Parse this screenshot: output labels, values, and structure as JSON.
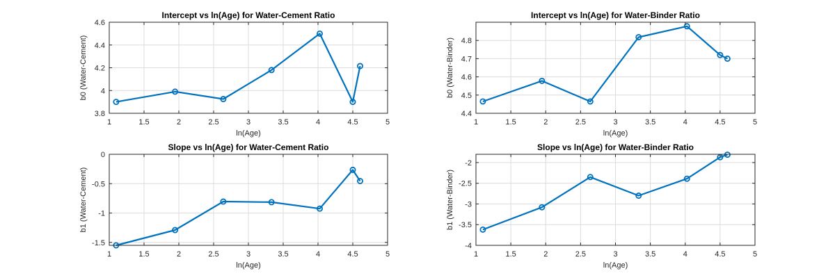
{
  "chart_data": [
    {
      "type": "line",
      "title": "Intercept vs ln(Age) for Water-Cement Ratio",
      "xlabel": "ln(Age)",
      "ylabel": "b0 (Water-Cement)",
      "xlim": [
        1,
        5
      ],
      "ylim": [
        3.8,
        4.6
      ],
      "xticks": [
        1,
        1.5,
        2,
        2.5,
        3,
        3.5,
        4,
        4.5,
        5
      ],
      "yticks": [
        3.8,
        4,
        4.2,
        4.4,
        4.6
      ],
      "grid": true,
      "color": "#0072BD",
      "series": [
        {
          "x": [
            1.099,
            1.946,
            2.639,
            3.332,
            4.025,
            4.5,
            4.605
          ],
          "y": [
            3.9,
            3.99,
            3.925,
            4.18,
            4.5,
            3.9,
            4.215
          ]
        }
      ]
    },
    {
      "type": "line",
      "title": "Intercept vs ln(Age) for Water-Binder Ratio",
      "xlabel": "ln(Age)",
      "ylabel": "b0 (Water-Binder)",
      "xlim": [
        1,
        5
      ],
      "ylim": [
        4.4,
        4.9
      ],
      "xticks": [
        1,
        1.5,
        2,
        2.5,
        3,
        3.5,
        4,
        4.5,
        5
      ],
      "yticks": [
        4.4,
        4.5,
        4.6,
        4.7,
        4.8
      ],
      "grid": true,
      "color": "#0072BD",
      "series": [
        {
          "x": [
            1.099,
            1.946,
            2.639,
            3.332,
            4.025,
            4.5,
            4.605
          ],
          "y": [
            4.465,
            4.578,
            4.465,
            4.818,
            4.878,
            4.72,
            4.7
          ]
        }
      ]
    },
    {
      "type": "line",
      "title": "Slope vs ln(Age) for Water-Cement Ratio",
      "xlabel": "ln(Age)",
      "ylabel": "b1 (Water-Cement)",
      "xlim": [
        1,
        5
      ],
      "ylim": [
        -1.55,
        0
      ],
      "xticks": [
        1,
        1.5,
        2,
        2.5,
        3,
        3.5,
        4,
        4.5,
        5
      ],
      "yticks": [
        -1.5,
        -1,
        -0.5,
        0
      ],
      "grid": true,
      "color": "#0072BD",
      "series": [
        {
          "x": [
            1.099,
            1.946,
            2.639,
            3.332,
            4.025,
            4.5,
            4.605
          ],
          "y": [
            -1.55,
            -1.29,
            -0.805,
            -0.815,
            -0.925,
            -0.265,
            -0.455
          ]
        }
      ]
    },
    {
      "type": "line",
      "title": "Slope vs ln(Age) for Water-Binder Ratio",
      "xlabel": "ln(Age)",
      "ylabel": "b1 (Water-Binder)",
      "xlim": [
        1,
        5
      ],
      "ylim": [
        -4,
        -1.8
      ],
      "xticks": [
        1,
        1.5,
        2,
        2.5,
        3,
        3.5,
        4,
        4.5,
        5
      ],
      "yticks": [
        -4,
        -3.5,
        -3,
        -2.5,
        -2
      ],
      "grid": true,
      "color": "#0072BD",
      "series": [
        {
          "x": [
            1.099,
            1.946,
            2.639,
            3.332,
            4.025,
            4.5,
            4.605
          ],
          "y": [
            -3.62,
            -3.08,
            -2.35,
            -2.8,
            -2.39,
            -1.87,
            -1.81
          ]
        }
      ]
    }
  ]
}
